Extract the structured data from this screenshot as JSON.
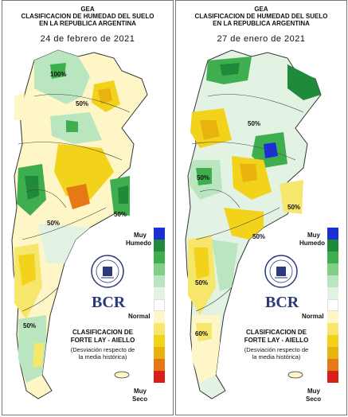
{
  "panels": [
    {
      "title_line1": "GEA",
      "title_line2": "CLASIFICACION DE HUMEDAD DEL SUELO",
      "title_line3": "EN LA REPUBLICA ARGENTINA",
      "date": "24 de febrero de 2021",
      "labels": {
        "muy_humedo_1": "Muy",
        "muy_humedo_2": "Humedo",
        "normal": "Normal",
        "muy_seco_1": "Muy",
        "muy_seco_2": "Seco"
      },
      "brand": "BCR",
      "classification_line1": "CLASIFICACION DE",
      "classification_line2": "FORTE LAY - AIELLO",
      "description_line1": "(Desviación respecto de",
      "description_line2": "la media histórica)",
      "contour_labels": [
        "100%",
        "50%",
        "50%",
        "50%",
        "50%"
      ]
    },
    {
      "title_line1": "GEA",
      "title_line2": "CLASIFICACION DE HUMEDAD DEL SUELO",
      "title_line3": "EN LA REPUBLICA ARGENTINA",
      "date": "27 de enero de 2021",
      "labels": {
        "muy_humedo_1": "Muy",
        "muy_humedo_2": "Humedo",
        "normal": "Normal",
        "muy_seco_1": "Muy",
        "muy_seco_2": "Seco"
      },
      "brand": "BCR",
      "classification_line1": "CLASIFICACION DE",
      "classification_line2": "FORTE LAY - AIELLO",
      "description_line1": "(Desviación respecto de",
      "description_line2": "la media histórica)",
      "contour_labels": [
        "50%",
        "50%",
        "50%",
        "50%",
        "50%",
        "60%"
      ]
    }
  ],
  "legend_colors": [
    "#1b2fd6",
    "#1f8a3a",
    "#3fae4f",
    "#7fcf86",
    "#b9e6bf",
    "#e2f3e3",
    "#ffffff",
    "#fff6c8",
    "#f6e66b",
    "#f2d21a",
    "#e8b20f",
    "#e57a14",
    "#d91f1a"
  ]
}
